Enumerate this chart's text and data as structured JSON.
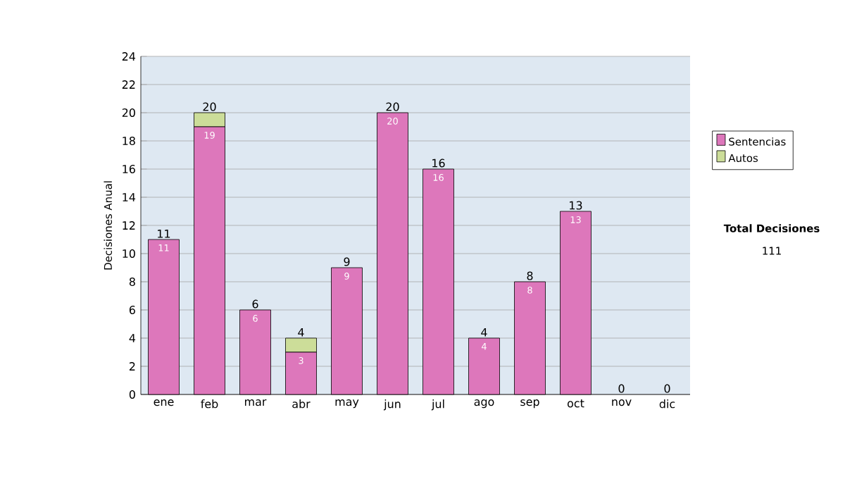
{
  "chart_data": {
    "type": "bar",
    "stacked": true,
    "ylabel": "Decisiones Anual",
    "categories": [
      "ene",
      "feb",
      "mar",
      "abr",
      "may",
      "jun",
      "jul",
      "ago",
      "sep",
      "oct",
      "nov",
      "dic"
    ],
    "series": [
      {
        "name": "Sentencias",
        "color": "#dd77bb",
        "values": [
          11,
          19,
          6,
          3,
          9,
          20,
          16,
          4,
          8,
          13,
          0,
          0
        ],
        "value_labels": [
          "11",
          "19",
          "6",
          "3",
          "9",
          "20",
          "16",
          "4",
          "8",
          "13",
          null,
          null
        ]
      },
      {
        "name": "Autos",
        "color": "#ccdd99",
        "values": [
          0,
          1,
          0,
          1,
          0,
          0,
          0,
          0,
          0,
          0,
          0,
          0
        ]
      }
    ],
    "totals": [
      "11",
      "20",
      "6",
      "4",
      "9",
      "20",
      "16",
      "4",
      "8",
      "13",
      "0",
      "0"
    ],
    "ylim": [
      0,
      24
    ],
    "yticks": [
      0,
      2,
      4,
      6,
      8,
      10,
      12,
      14,
      16,
      18,
      20,
      22,
      24
    ],
    "grid": "y",
    "legend": "right",
    "annotations": [
      "Total Decisiones",
      "111"
    ]
  }
}
